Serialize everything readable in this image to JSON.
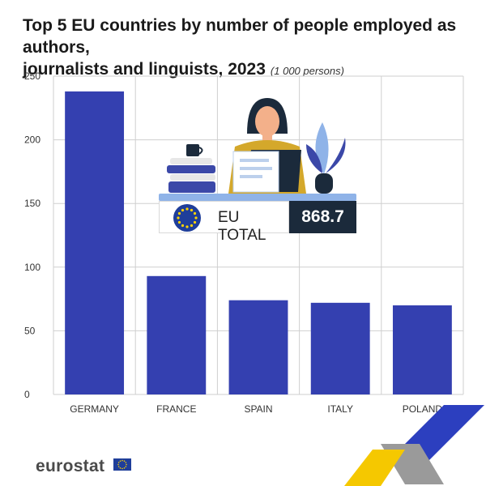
{
  "header": {
    "title_line1": "Top 5 EU countries by number of people employed as authors,",
    "title_line2": "journalists and linguists, 2023",
    "unit": "(1 000 persons)"
  },
  "eu_total": {
    "label": "EU TOTAL",
    "value": "868.7"
  },
  "brand": {
    "name": "eurostat"
  },
  "colors": {
    "bar": "#3440b0",
    "grid": "#cfcfcf",
    "eu_dark": "#1b2a3b",
    "eu_flag": "#1f3e9a",
    "star": "#ffd400",
    "ribbon_yellow": "#f5c800"
  },
  "chart_data": {
    "type": "bar",
    "categories": [
      "GERMANY",
      "FRANCE",
      "SPAIN",
      "ITALY",
      "POLAND"
    ],
    "values": [
      238,
      93,
      74,
      72,
      70
    ],
    "ylim": [
      0,
      250
    ],
    "yticks": [
      0,
      50,
      100,
      150,
      200,
      250
    ],
    "grid": true
  }
}
